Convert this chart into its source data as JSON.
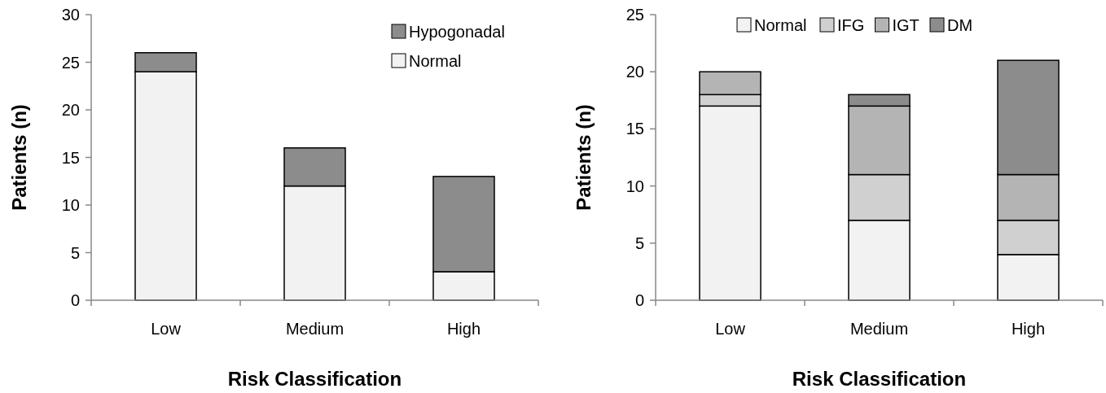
{
  "chart_data": [
    {
      "type": "bar",
      "stacked": true,
      "categories": [
        "Low",
        "Medium",
        "High"
      ],
      "series": [
        {
          "name": "Normal",
          "color": "#f2f2f2",
          "values": [
            24,
            12,
            3
          ]
        },
        {
          "name": "Hypogonadal",
          "color": "#8c8c8c",
          "values": [
            2,
            4,
            10
          ]
        }
      ],
      "ylim": [
        0,
        30
      ],
      "yticks": [
        0,
        5,
        10,
        15,
        20,
        25,
        30
      ],
      "xlabel": "Risk Classification",
      "ylabel": "Patients (n)",
      "legend": "top right",
      "grid": false
    },
    {
      "type": "bar",
      "stacked": true,
      "categories": [
        "Low",
        "Medium",
        "High"
      ],
      "series": [
        {
          "name": "Normal",
          "color": "#f2f2f2",
          "values": [
            17,
            7,
            4
          ]
        },
        {
          "name": "IFG",
          "color": "#d0d0d0",
          "values": [
            1,
            4,
            3
          ]
        },
        {
          "name": "IGT",
          "color": "#b4b4b4",
          "values": [
            2,
            6,
            4
          ]
        },
        {
          "name": "DM",
          "color": "#8c8c8c",
          "values": [
            0,
            1,
            10
          ]
        }
      ],
      "ylim": [
        0,
        25
      ],
      "yticks": [
        0,
        5,
        10,
        15,
        20,
        25
      ],
      "xlabel": "Risk Classification",
      "ylabel": "Patients (n)",
      "legend": "top",
      "grid": false
    }
  ]
}
